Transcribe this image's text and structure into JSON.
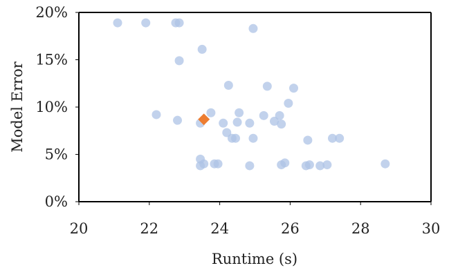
{
  "chart_data": {
    "type": "scatter",
    "xlabel": "Runtime (s)",
    "ylabel": "Model Error",
    "xlim": [
      20,
      30
    ],
    "ylim": [
      0,
      20
    ],
    "xticks": [
      20,
      22,
      24,
      26,
      28,
      30
    ],
    "yticks": [
      0,
      5,
      10,
      15,
      20
    ],
    "x_tick_labels": [
      "20",
      "22",
      "24",
      "26",
      "28",
      "30"
    ],
    "y_tick_labels": [
      "0%",
      "5%",
      "10%",
      "15%",
      "20%"
    ],
    "grid": false,
    "legend": "none",
    "series": [
      {
        "marker": "circle",
        "color": "#aec3e6",
        "points": [
          {
            "x": 21.1,
            "y": 18.9
          },
          {
            "x": 21.9,
            "y": 18.9
          },
          {
            "x": 22.75,
            "y": 18.9
          },
          {
            "x": 22.85,
            "y": 18.9
          },
          {
            "x": 24.95,
            "y": 18.3
          },
          {
            "x": 23.5,
            "y": 16.1
          },
          {
            "x": 22.85,
            "y": 14.9
          },
          {
            "x": 24.25,
            "y": 12.3
          },
          {
            "x": 25.35,
            "y": 12.2
          },
          {
            "x": 26.1,
            "y": 12.0
          },
          {
            "x": 25.95,
            "y": 10.4
          },
          {
            "x": 22.2,
            "y": 9.2
          },
          {
            "x": 23.75,
            "y": 9.4
          },
          {
            "x": 24.55,
            "y": 9.4
          },
          {
            "x": 25.25,
            "y": 9.1
          },
          {
            "x": 25.7,
            "y": 9.1
          },
          {
            "x": 22.8,
            "y": 8.6
          },
          {
            "x": 23.45,
            "y": 8.3
          },
          {
            "x": 24.1,
            "y": 8.3
          },
          {
            "x": 24.5,
            "y": 8.4
          },
          {
            "x": 24.85,
            "y": 8.3
          },
          {
            "x": 25.55,
            "y": 8.5
          },
          {
            "x": 25.75,
            "y": 8.2
          },
          {
            "x": 24.2,
            "y": 7.3
          },
          {
            "x": 24.35,
            "y": 6.7
          },
          {
            "x": 24.45,
            "y": 6.7
          },
          {
            "x": 24.95,
            "y": 6.7
          },
          {
            "x": 26.5,
            "y": 6.5
          },
          {
            "x": 27.2,
            "y": 6.7
          },
          {
            "x": 27.4,
            "y": 6.7
          },
          {
            "x": 23.45,
            "y": 4.5
          },
          {
            "x": 23.45,
            "y": 3.8
          },
          {
            "x": 23.55,
            "y": 4.0
          },
          {
            "x": 23.85,
            "y": 4.0
          },
          {
            "x": 23.95,
            "y": 4.0
          },
          {
            "x": 24.85,
            "y": 3.8
          },
          {
            "x": 25.75,
            "y": 3.9
          },
          {
            "x": 25.85,
            "y": 4.1
          },
          {
            "x": 26.45,
            "y": 3.8
          },
          {
            "x": 26.55,
            "y": 3.9
          },
          {
            "x": 26.85,
            "y": 3.8
          },
          {
            "x": 27.05,
            "y": 3.9
          },
          {
            "x": 28.7,
            "y": 4.0
          }
        ]
      },
      {
        "marker": "diamond",
        "color": "#ed7d31",
        "points": [
          {
            "x": 23.55,
            "y": 8.7
          }
        ]
      }
    ]
  }
}
